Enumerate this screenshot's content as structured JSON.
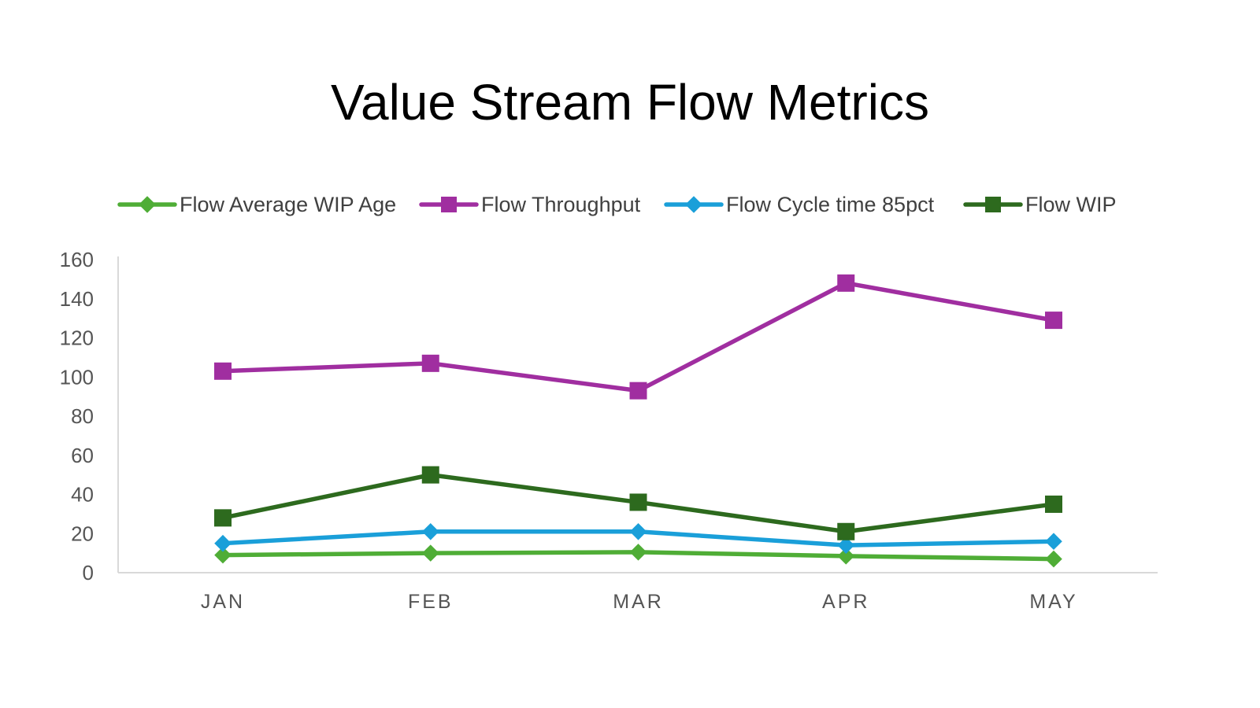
{
  "chart_data": {
    "type": "line",
    "title": "Value Stream Flow Metrics",
    "categories": [
      "JAN",
      "FEB",
      "MAR",
      "APR",
      "MAY"
    ],
    "ylim": [
      0,
      160
    ],
    "yticks": [
      0,
      20,
      40,
      60,
      80,
      100,
      120,
      140,
      160
    ],
    "grid": false,
    "legend_position": "top",
    "series": [
      {
        "name": "Flow Average WIP Age",
        "values": [
          9,
          10,
          10.5,
          8.5,
          7
        ],
        "color": "#4fad36",
        "marker": "diamond"
      },
      {
        "name": "Flow Throughput",
        "values": [
          103,
          107,
          93,
          148,
          129
        ],
        "color": "#a02ea0",
        "marker": "square"
      },
      {
        "name": "Flow Cycle time 85pct",
        "values": [
          15,
          21,
          21,
          14,
          16
        ],
        "color": "#1a9fd9",
        "marker": "diamond"
      },
      {
        "name": "Flow WIP",
        "values": [
          28,
          50,
          36,
          21,
          35
        ],
        "color": "#2d6a1e",
        "marker": "square"
      }
    ]
  }
}
